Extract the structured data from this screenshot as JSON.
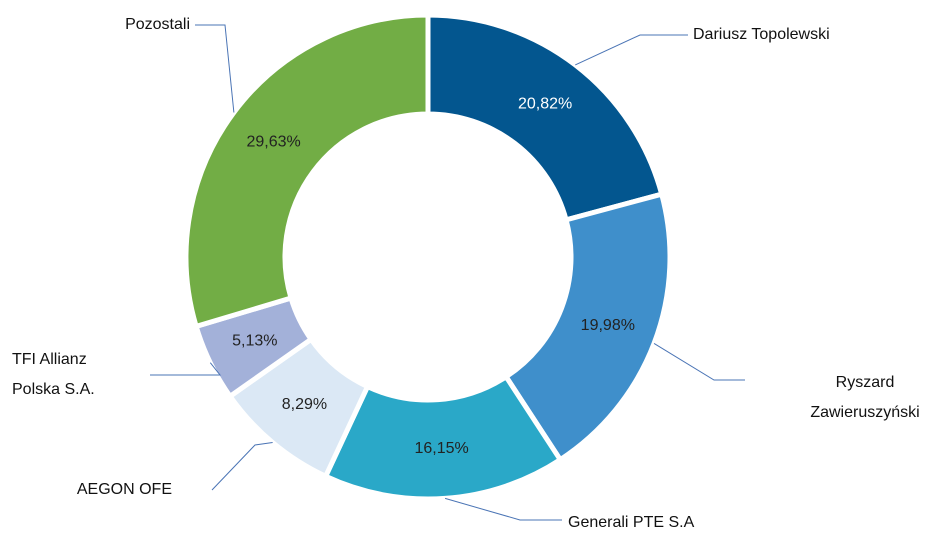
{
  "chart_data": {
    "type": "donut",
    "categories": [
      "Dariusz Topolewski",
      "Ryszard Zawieruszyński",
      "Generali PTE S.A",
      "AEGON OFE",
      "TFI Allianz Polska S.A.",
      "Pozostali"
    ],
    "values": [
      20.82,
      19.98,
      16.15,
      8.29,
      5.13,
      29.63
    ],
    "value_labels": [
      "20,82%",
      "19,98%",
      "16,15%",
      "8,29%",
      "5,13%",
      "29,63%"
    ],
    "colors": [
      "#03568f",
      "#3f8fcb",
      "#2aa8c8",
      "#dbe8f5",
      "#a3b1d9",
      "#72ad45"
    ]
  }
}
